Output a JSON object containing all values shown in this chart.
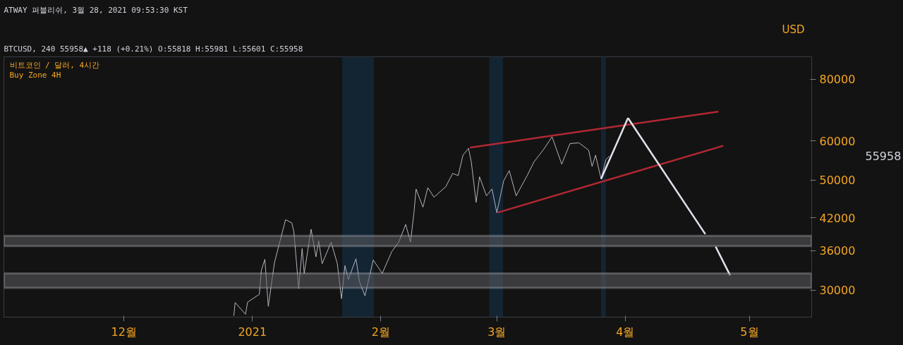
{
  "chart_data": {
    "type": "line",
    "title": "ATWAY 퍼블리쉬, 3월 28, 2021 09:53:30 KST",
    "subtitle": "BTCUSD, 240 55958▲ +118 (+0.21%) O:55818 H:55981 L:55601 C:55958",
    "annotations": [
      "비트코인 / 달러, 4시간",
      "Buy Zone 4H",
      "USD",
      "55958"
    ],
    "log": true,
    "grid": false,
    "marker": "none",
    "line_style": "solid",
    "xlim": [
      "2020-11-02",
      "2021-05-16"
    ],
    "xticks": [
      {
        "value": "2020-12-01",
        "label": "12월"
      },
      {
        "value": "2021-01-01",
        "label": "2021"
      },
      {
        "value": "2021-02-01",
        "label": "2월"
      },
      {
        "value": "2021-03-01",
        "label": "3월"
      },
      {
        "value": "2021-04-01",
        "label": "4월"
      },
      {
        "value": "2021-05-01",
        "label": "5월"
      }
    ],
    "ylim": [
      26440,
      88800
    ],
    "yticks": [
      30000,
      36000,
      42000,
      50000,
      60000,
      80000
    ],
    "bands": [
      {
        "axis": "x",
        "from": "2021-01-22T16:00",
        "to": "2021-01-30T08:00",
        "color": "#132433"
      },
      {
        "axis": "x",
        "from": "2021-02-27T04:00",
        "to": "2021-03-02T12:00",
        "color": "#132433"
      },
      {
        "axis": "x",
        "from": "2021-03-26T04:00",
        "to": "2021-03-27T08:00",
        "color": "#132433"
      },
      {
        "axis": "y",
        "from": 36800,
        "to": 38600,
        "color": "#5d5d62"
      },
      {
        "axis": "y",
        "from": 30300,
        "to": 32400,
        "color": "#5d5d62"
      }
    ],
    "series": [
      {
        "color": "#b2b5be",
        "x": [
          "2020-12-27T12:00",
          "2020-12-27T20:00",
          "2020-12-30T08:00",
          "2020-12-30T20:00",
          "2021-01-02T16:00",
          "2021-01-03T04:00",
          "2021-01-04T00:00",
          "2021-01-04T20:00",
          "2021-01-05T20:00",
          "2021-01-06T08:00",
          "2021-01-07T16:00",
          "2021-01-09T00:00",
          "2021-01-10T12:00",
          "2021-01-11T00:00",
          "2021-01-12T04:00",
          "2021-01-13T00:00",
          "2021-01-13T12:00",
          "2021-01-15T04:00",
          "2021-01-16T08:00",
          "2021-01-17T00:00",
          "2021-01-17T20:00",
          "2021-01-20T00:00",
          "2021-01-21T12:00",
          "2021-01-22T12:00",
          "2021-01-23T08:00",
          "2021-01-24T04:00",
          "2021-01-26T00:00",
          "2021-01-26T20:00",
          "2021-01-28T04:00",
          "2021-01-30T04:00",
          "2021-02-01T08:00",
          "2021-02-03T16:00",
          "2021-02-05T08:00",
          "2021-02-07T00:00",
          "2021-02-08T04:00",
          "2021-02-09T00:00",
          "2021-02-09T12:00",
          "2021-02-11T04:00",
          "2021-02-12T08:00",
          "2021-02-13T20:00",
          "2021-02-16T16:00",
          "2021-02-18T08:00",
          "2021-02-19T16:00",
          "2021-02-20T20:00",
          "2021-02-22T04:00",
          "2021-02-22T20:00",
          "2021-02-24T00:00",
          "2021-02-24T20:00",
          "2021-02-26T12:00",
          "2021-02-27T20:00",
          "2021-03-01T00:00",
          "2021-03-02T16:00",
          "2021-03-04T00:00",
          "2021-03-05T16:00",
          "2021-03-08T08:00",
          "2021-03-10T00:00",
          "2021-03-12T04:00",
          "2021-03-14T08:00",
          "2021-03-16T16:00",
          "2021-03-18T16:00",
          "2021-03-20T20:00",
          "2021-03-23T04:00",
          "2021-03-24T00:00",
          "2021-03-24T20:00",
          "2021-03-26T04:00",
          "2021-03-27T08:00",
          "2021-03-28T04:00"
        ],
        "values": [
          26600,
          28300,
          26800,
          28350,
          29400,
          32900,
          34600,
          27800,
          31900,
          34100,
          37700,
          41600,
          41000,
          39400,
          30200,
          36400,
          32400,
          39800,
          35000,
          37700,
          33900,
          37500,
          33900,
          28800,
          33600,
          31500,
          34700,
          31200,
          29200,
          34500,
          32400,
          35900,
          37500,
          40700,
          37500,
          43000,
          48000,
          44100,
          48300,
          46200,
          48500,
          51600,
          51100,
          56200,
          58000,
          54500,
          45100,
          50800,
          46500,
          48000,
          43000,
          49900,
          52300,
          46500,
          51100,
          54500,
          57500,
          61200,
          53900,
          59300,
          59500,
          57500,
          53300,
          56200,
          50300,
          55000,
          55958
        ]
      },
      {
        "color": "#b22833",
        "x": [
          "2021-02-22T12:00",
          "2021-04-23T12:00"
        ],
        "values": [
          58200,
          68800
        ]
      },
      {
        "color": "#b22833",
        "x": [
          "2021-03-01T04:00",
          "2021-04-24T16:00"
        ],
        "values": [
          43000,
          58700
        ]
      },
      {
        "color": "#e0e3eb",
        "x": [
          "2021-03-26T04:00",
          "2021-04-01T16:00"
        ],
        "values": [
          50300,
          66800
        ]
      },
      {
        "color": "#e0e3eb",
        "x": [
          "2021-04-01T16:00",
          "2021-04-20T08:00"
        ],
        "values": [
          66800,
          38900
        ]
      },
      {
        "color": "#e0e3eb",
        "x": [
          "2021-04-22T20:00",
          "2021-04-26T08:00"
        ],
        "values": [
          36700,
          32100
        ]
      }
    ]
  }
}
